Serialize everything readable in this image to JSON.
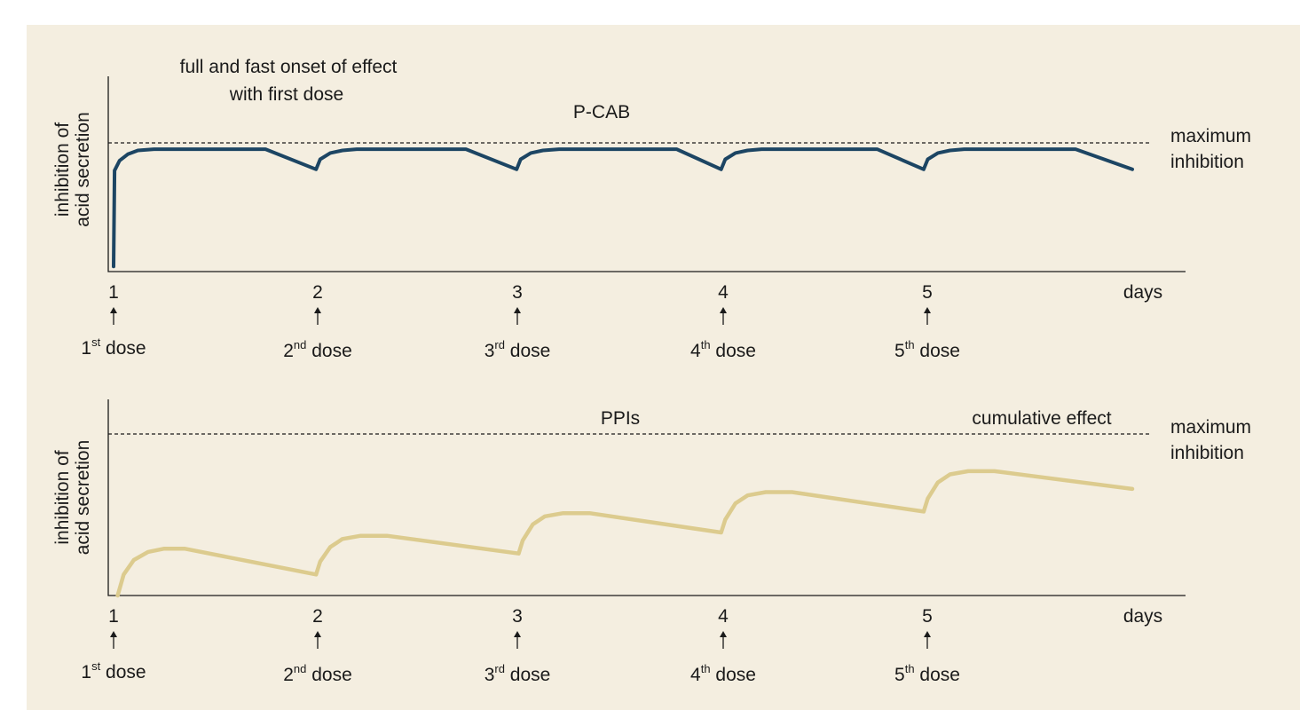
{
  "chart_data": [
    {
      "type": "line",
      "title": "P-CAB",
      "annotation": "full and fast onset of effect with first dose",
      "annotation_lines": [
        "full and fast onset of effect",
        "with first dose"
      ],
      "ylabel_lines": [
        "inhibition of",
        "acid secretion"
      ],
      "xlabel": "days",
      "x_ticks": [
        "1",
        "2",
        "3",
        "4",
        "5"
      ],
      "doses": [
        {
          "ordinal": "1",
          "suffix": "st",
          "word": "dose"
        },
        {
          "ordinal": "2",
          "suffix": "nd",
          "word": "dose"
        },
        {
          "ordinal": "3",
          "suffix": "rd",
          "word": "dose"
        },
        {
          "ordinal": "4",
          "suffix": "th",
          "word": "dose"
        },
        {
          "ordinal": "5",
          "suffix": "th",
          "word": "dose"
        }
      ],
      "reference_line": {
        "label_lines": [
          "maximum",
          "inhibition"
        ],
        "y": 1.0
      },
      "xlim": [
        1,
        6.03
      ],
      "ylim": [
        0,
        1.2
      ],
      "series": [
        {
          "color": "#1c4563",
          "points": [
            [
              1,
              0.02
            ],
            [
              1.005,
              0.78
            ],
            [
              1.03,
              0.86
            ],
            [
              1.07,
              0.91
            ],
            [
              1.12,
              0.94
            ],
            [
              1.2,
              0.95
            ],
            [
              1.75,
              0.95
            ],
            [
              2,
              0.79
            ],
            [
              2.02,
              0.87
            ],
            [
              2.07,
              0.92
            ],
            [
              2.13,
              0.94
            ],
            [
              2.2,
              0.95
            ],
            [
              2.74,
              0.95
            ],
            [
              2.99,
              0.79
            ],
            [
              3.01,
              0.87
            ],
            [
              3.06,
              0.92
            ],
            [
              3.12,
              0.94
            ],
            [
              3.2,
              0.95
            ],
            [
              3.78,
              0.95
            ],
            [
              4,
              0.79
            ],
            [
              4.02,
              0.87
            ],
            [
              4.07,
              0.92
            ],
            [
              4.13,
              0.94
            ],
            [
              4.2,
              0.95
            ],
            [
              4.77,
              0.95
            ],
            [
              5,
              0.79
            ],
            [
              5.02,
              0.87
            ],
            [
              5.07,
              0.92
            ],
            [
              5.13,
              0.94
            ],
            [
              5.2,
              0.95
            ],
            [
              5.75,
              0.95
            ],
            [
              6.03,
              0.79
            ]
          ]
        }
      ]
    },
    {
      "type": "line",
      "title": "PPIs",
      "annotation": "cumulative effect",
      "ylabel_lines": [
        "inhibition of",
        "acid secretion"
      ],
      "xlabel": "days",
      "x_ticks": [
        "1",
        "2",
        "3",
        "4",
        "5"
      ],
      "doses": [
        {
          "ordinal": "1",
          "suffix": "st",
          "word": "dose"
        },
        {
          "ordinal": "2",
          "suffix": "nd",
          "word": "dose"
        },
        {
          "ordinal": "3",
          "suffix": "rd",
          "word": "dose"
        },
        {
          "ordinal": "4",
          "suffix": "th",
          "word": "dose"
        },
        {
          "ordinal": "5",
          "suffix": "th",
          "word": "dose"
        }
      ],
      "reference_line": {
        "label_lines": [
          "maximum",
          "inhibition"
        ],
        "y": 1.0
      },
      "xlim": [
        1,
        6.03
      ],
      "ylim": [
        0,
        1.2
      ],
      "series": [
        {
          "color": "#dccb8e",
          "points": [
            [
              1.02,
              0
            ],
            [
              1.05,
              0.13
            ],
            [
              1.1,
              0.22
            ],
            [
              1.17,
              0.27
            ],
            [
              1.25,
              0.29
            ],
            [
              1.35,
              0.29
            ],
            [
              2,
              0.13
            ],
            [
              2.02,
              0.21
            ],
            [
              2.07,
              0.3
            ],
            [
              2.13,
              0.35
            ],
            [
              2.22,
              0.37
            ],
            [
              2.35,
              0.37
            ],
            [
              3,
              0.26
            ],
            [
              3.02,
              0.34
            ],
            [
              3.07,
              0.44
            ],
            [
              3.13,
              0.49
            ],
            [
              3.22,
              0.51
            ],
            [
              3.35,
              0.51
            ],
            [
              4,
              0.39
            ],
            [
              4.02,
              0.47
            ],
            [
              4.07,
              0.57
            ],
            [
              4.13,
              0.62
            ],
            [
              4.22,
              0.64
            ],
            [
              4.35,
              0.64
            ],
            [
              5,
              0.52
            ],
            [
              5.02,
              0.6
            ],
            [
              5.07,
              0.7
            ],
            [
              5.13,
              0.75
            ],
            [
              5.22,
              0.77
            ],
            [
              5.35,
              0.77
            ],
            [
              6.03,
              0.66
            ]
          ]
        }
      ]
    }
  ]
}
